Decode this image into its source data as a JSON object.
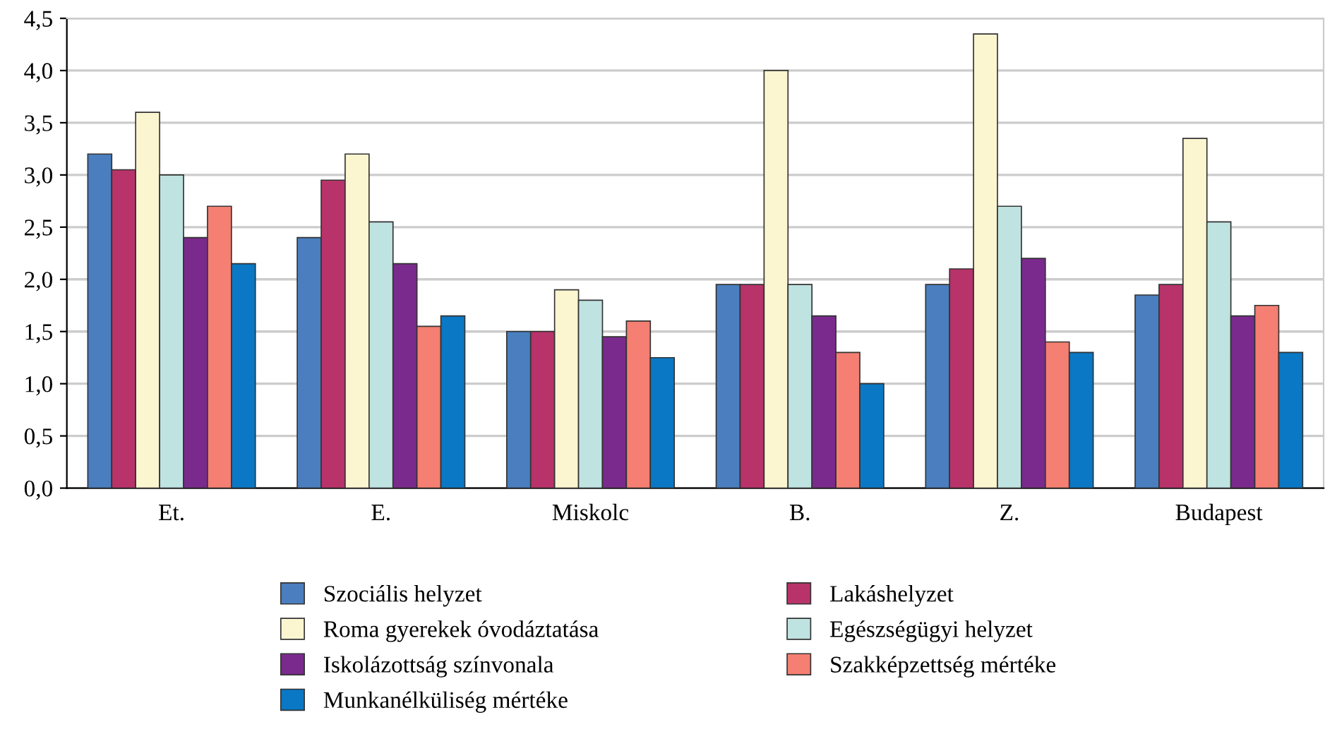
{
  "chart_data": {
    "type": "bar",
    "categories": [
      "Et.",
      "E.",
      "Miskolc",
      "B.",
      "Z.",
      "Budapest"
    ],
    "series": [
      {
        "name": "Szociális helyzet",
        "color": "#4a7ebf",
        "values": [
          3.2,
          2.4,
          1.5,
          1.95,
          1.95,
          1.85
        ]
      },
      {
        "name": "Lakáshelyzet",
        "color": "#b8336a",
        "values": [
          3.05,
          2.95,
          1.5,
          1.95,
          2.1,
          1.95
        ]
      },
      {
        "name": "Roma gyerekek óvodáztatása",
        "color": "#fbf5d0",
        "values": [
          3.6,
          3.2,
          1.9,
          4.0,
          4.35,
          3.35
        ]
      },
      {
        "name": "Egészségügyi helyzet",
        "color": "#bfe3e0",
        "values": [
          3.0,
          2.55,
          1.8,
          1.95,
          2.7,
          2.55
        ]
      },
      {
        "name": "Iskolázottság színvonala",
        "color": "#7a2a8c",
        "values": [
          2.4,
          2.15,
          1.45,
          1.65,
          2.2,
          1.65
        ]
      },
      {
        "name": "Szakképzettség mértéke",
        "color": "#f47f72",
        "values": [
          2.7,
          1.55,
          1.6,
          1.3,
          1.4,
          1.75
        ]
      },
      {
        "name": "Munkanélküliség mértéke",
        "color": "#0a78c4",
        "values": [
          2.15,
          1.65,
          1.25,
          1.0,
          1.3,
          1.3
        ]
      }
    ],
    "ylim": [
      0,
      4.5
    ],
    "yticks": [
      {
        "value": 0,
        "label": "0,0"
      },
      {
        "value": 0.5,
        "label": "0,5"
      },
      {
        "value": 1,
        "label": "1,0"
      },
      {
        "value": 1.5,
        "label": "1,5"
      },
      {
        "value": 2,
        "label": "2,0"
      },
      {
        "value": 2.5,
        "label": "2,5"
      },
      {
        "value": 3,
        "label": "3,0"
      },
      {
        "value": 3.5,
        "label": "3,5"
      },
      {
        "value": 4,
        "label": "4,0"
      },
      {
        "value": 4.5,
        "label": "4,5"
      }
    ],
    "grid": "y",
    "legend": "bottom"
  }
}
